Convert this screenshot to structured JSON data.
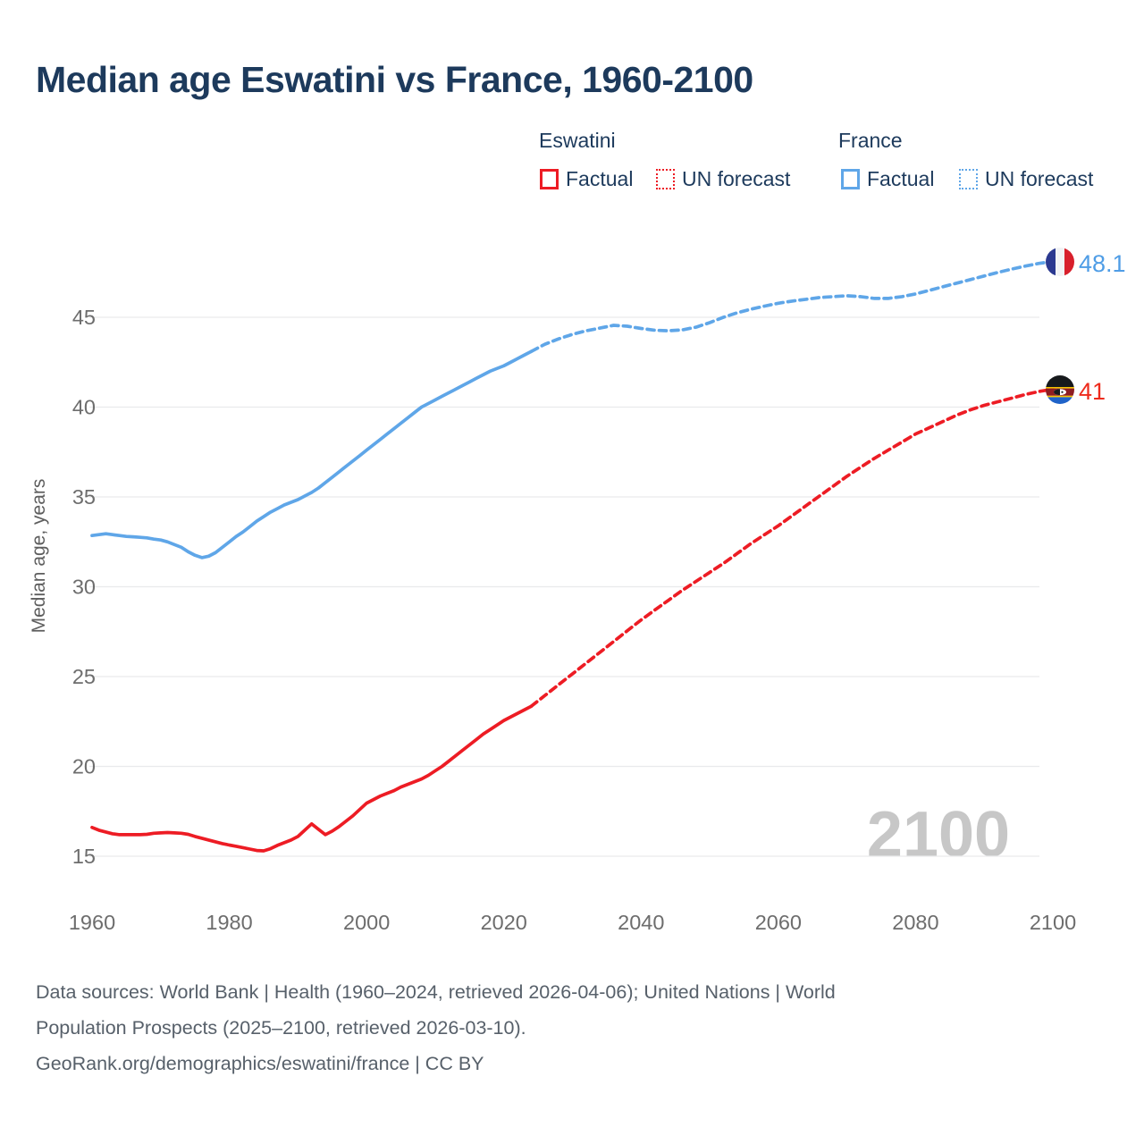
{
  "title": "Median age Eswatini vs France, 1960-2100",
  "legend": {
    "groups": [
      {
        "name": "Eswatini",
        "color": "#ed1c24",
        "items": [
          {
            "label": "Factual",
            "style": "solid"
          },
          {
            "label": "UN forecast",
            "style": "dotted"
          }
        ]
      },
      {
        "name": "France",
        "color": "#5fa6e8",
        "items": [
          {
            "label": "Factual",
            "style": "solid"
          },
          {
            "label": "UN forecast",
            "style": "dotted"
          }
        ]
      }
    ]
  },
  "footer": {
    "line1": "Data sources: World Bank | Health (1960–2024, retrieved 2026-04-06); United Nations | World",
    "line2": "Population Prospects (2025–2100, retrieved 2026-03-10).",
    "line3": "GeoRank.org/demographics/eswatini/france | CC BY"
  },
  "chart_data": {
    "type": "line",
    "title": "Median age Eswatini vs France, 1960-2100",
    "xlabel": "",
    "ylabel": "Median age, years",
    "x_ticks": [
      1960,
      1980,
      2000,
      2020,
      2040,
      2060,
      2080,
      2100
    ],
    "y_ticks": [
      15,
      20,
      25,
      30,
      35,
      40,
      45
    ],
    "x_range": [
      1960,
      2100
    ],
    "y_range": [
      15,
      45
    ],
    "grid": "horizontal-only",
    "legend_position": "top-right",
    "watermark": "2100",
    "colors": {
      "eswatini": "#ed1c24",
      "france": "#5fa6e8",
      "grid": "#e9eaec",
      "tick": "#6d6d6d"
    },
    "end_labels": [
      {
        "series": "France",
        "value": "48.1",
        "color": "#4f9de6",
        "flag": "france-flag-icon",
        "year": 2100
      },
      {
        "series": "Eswatini",
        "value": "41",
        "color": "#ee2b1c",
        "flag": "eswatini-flag-icon",
        "year": 2100
      }
    ],
    "series": [
      {
        "name": "Eswatini Factual",
        "color": "#ed1c24",
        "dashed": false,
        "points": [
          [
            1960,
            16.6
          ],
          [
            1961,
            16.45
          ],
          [
            1962,
            16.35
          ],
          [
            1963,
            16.25
          ],
          [
            1964,
            16.2
          ],
          [
            1965,
            16.2
          ],
          [
            1966,
            16.2
          ],
          [
            1967,
            16.2
          ],
          [
            1968,
            16.22
          ],
          [
            1969,
            16.28
          ],
          [
            1970,
            16.3
          ],
          [
            1971,
            16.32
          ],
          [
            1972,
            16.3
          ],
          [
            1973,
            16.28
          ],
          [
            1974,
            16.22
          ],
          [
            1975,
            16.1
          ],
          [
            1976,
            16.0
          ],
          [
            1977,
            15.9
          ],
          [
            1978,
            15.8
          ],
          [
            1979,
            15.7
          ],
          [
            1980,
            15.62
          ],
          [
            1981,
            15.55
          ],
          [
            1982,
            15.48
          ],
          [
            1983,
            15.4
          ],
          [
            1984,
            15.32
          ],
          [
            1985,
            15.3
          ],
          [
            1986,
            15.42
          ],
          [
            1987,
            15.6
          ],
          [
            1988,
            15.75
          ],
          [
            1989,
            15.9
          ],
          [
            1990,
            16.1
          ],
          [
            1991,
            16.45
          ],
          [
            1992,
            16.8
          ],
          [
            1993,
            16.5
          ],
          [
            1994,
            16.2
          ],
          [
            1995,
            16.4
          ],
          [
            1996,
            16.65
          ],
          [
            1997,
            16.95
          ],
          [
            1998,
            17.25
          ],
          [
            1999,
            17.6
          ],
          [
            2000,
            17.95
          ],
          [
            2001,
            18.15
          ],
          [
            2002,
            18.35
          ],
          [
            2003,
            18.5
          ],
          [
            2004,
            18.65
          ],
          [
            2005,
            18.85
          ],
          [
            2006,
            19.0
          ],
          [
            2007,
            19.15
          ],
          [
            2008,
            19.3
          ],
          [
            2009,
            19.5
          ],
          [
            2010,
            19.75
          ],
          [
            2011,
            20.0
          ],
          [
            2012,
            20.3
          ],
          [
            2013,
            20.6
          ],
          [
            2014,
            20.9
          ],
          [
            2015,
            21.2
          ],
          [
            2016,
            21.5
          ],
          [
            2017,
            21.8
          ],
          [
            2018,
            22.05
          ],
          [
            2019,
            22.3
          ],
          [
            2020,
            22.55
          ],
          [
            2021,
            22.75
          ],
          [
            2022,
            22.95
          ],
          [
            2023,
            23.15
          ],
          [
            2024,
            23.35
          ]
        ]
      },
      {
        "name": "Eswatini UN forecast",
        "color": "#ed1c24",
        "dashed": true,
        "points": [
          [
            2024,
            23.35
          ],
          [
            2026,
            23.95
          ],
          [
            2028,
            24.55
          ],
          [
            2030,
            25.15
          ],
          [
            2032,
            25.75
          ],
          [
            2034,
            26.35
          ],
          [
            2036,
            26.95
          ],
          [
            2038,
            27.55
          ],
          [
            2040,
            28.15
          ],
          [
            2042,
            28.7
          ],
          [
            2044,
            29.25
          ],
          [
            2046,
            29.8
          ],
          [
            2048,
            30.3
          ],
          [
            2050,
            30.8
          ],
          [
            2052,
            31.3
          ],
          [
            2054,
            31.85
          ],
          [
            2056,
            32.4
          ],
          [
            2058,
            32.9
          ],
          [
            2060,
            33.4
          ],
          [
            2062,
            33.95
          ],
          [
            2064,
            34.5
          ],
          [
            2066,
            35.05
          ],
          [
            2068,
            35.6
          ],
          [
            2070,
            36.15
          ],
          [
            2072,
            36.65
          ],
          [
            2074,
            37.15
          ],
          [
            2076,
            37.6
          ],
          [
            2078,
            38.05
          ],
          [
            2080,
            38.5
          ],
          [
            2082,
            38.85
          ],
          [
            2084,
            39.2
          ],
          [
            2086,
            39.55
          ],
          [
            2088,
            39.85
          ],
          [
            2090,
            40.1
          ],
          [
            2092,
            40.3
          ],
          [
            2094,
            40.5
          ],
          [
            2096,
            40.7
          ],
          [
            2098,
            40.87
          ],
          [
            2100,
            41.0
          ]
        ]
      },
      {
        "name": "France Factual",
        "color": "#5fa6e8",
        "dashed": false,
        "points": [
          [
            1960,
            32.85
          ],
          [
            1961,
            32.9
          ],
          [
            1962,
            32.95
          ],
          [
            1963,
            32.9
          ],
          [
            1964,
            32.85
          ],
          [
            1965,
            32.8
          ],
          [
            1966,
            32.78
          ],
          [
            1967,
            32.75
          ],
          [
            1968,
            32.72
          ],
          [
            1969,
            32.65
          ],
          [
            1970,
            32.6
          ],
          [
            1971,
            32.5
          ],
          [
            1972,
            32.35
          ],
          [
            1973,
            32.2
          ],
          [
            1974,
            31.95
          ],
          [
            1975,
            31.75
          ],
          [
            1976,
            31.62
          ],
          [
            1977,
            31.7
          ],
          [
            1978,
            31.9
          ],
          [
            1979,
            32.2
          ],
          [
            1980,
            32.5
          ],
          [
            1981,
            32.8
          ],
          [
            1982,
            33.05
          ],
          [
            1983,
            33.35
          ],
          [
            1984,
            33.65
          ],
          [
            1985,
            33.9
          ],
          [
            1986,
            34.15
          ],
          [
            1987,
            34.35
          ],
          [
            1988,
            34.55
          ],
          [
            1989,
            34.7
          ],
          [
            1990,
            34.85
          ],
          [
            1991,
            35.05
          ],
          [
            1992,
            35.25
          ],
          [
            1993,
            35.5
          ],
          [
            1994,
            35.8
          ],
          [
            1995,
            36.1
          ],
          [
            1996,
            36.4
          ],
          [
            1997,
            36.7
          ],
          [
            1998,
            37.0
          ],
          [
            1999,
            37.3
          ],
          [
            2000,
            37.6
          ],
          [
            2001,
            37.9
          ],
          [
            2002,
            38.2
          ],
          [
            2003,
            38.5
          ],
          [
            2004,
            38.8
          ],
          [
            2005,
            39.1
          ],
          [
            2006,
            39.4
          ],
          [
            2007,
            39.7
          ],
          [
            2008,
            40.0
          ],
          [
            2009,
            40.2
          ],
          [
            2010,
            40.4
          ],
          [
            2011,
            40.6
          ],
          [
            2012,
            40.8
          ],
          [
            2013,
            41.0
          ],
          [
            2014,
            41.2
          ],
          [
            2015,
            41.4
          ],
          [
            2016,
            41.6
          ],
          [
            2017,
            41.8
          ],
          [
            2018,
            42.0
          ],
          [
            2019,
            42.15
          ],
          [
            2020,
            42.3
          ],
          [
            2021,
            42.5
          ],
          [
            2022,
            42.7
          ],
          [
            2023,
            42.9
          ],
          [
            2024,
            43.1
          ]
        ]
      },
      {
        "name": "France UN forecast",
        "color": "#5fa6e8",
        "dashed": true,
        "points": [
          [
            2024,
            43.1
          ],
          [
            2026,
            43.5
          ],
          [
            2028,
            43.8
          ],
          [
            2030,
            44.05
          ],
          [
            2032,
            44.25
          ],
          [
            2034,
            44.4
          ],
          [
            2036,
            44.55
          ],
          [
            2038,
            44.5
          ],
          [
            2040,
            44.38
          ],
          [
            2042,
            44.28
          ],
          [
            2044,
            44.25
          ],
          [
            2046,
            44.3
          ],
          [
            2048,
            44.45
          ],
          [
            2050,
            44.7
          ],
          [
            2052,
            45.0
          ],
          [
            2054,
            45.25
          ],
          [
            2056,
            45.45
          ],
          [
            2058,
            45.62
          ],
          [
            2060,
            45.78
          ],
          [
            2062,
            45.9
          ],
          [
            2064,
            46.0
          ],
          [
            2066,
            46.1
          ],
          [
            2068,
            46.15
          ],
          [
            2070,
            46.2
          ],
          [
            2072,
            46.15
          ],
          [
            2074,
            46.05
          ],
          [
            2076,
            46.05
          ],
          [
            2078,
            46.15
          ],
          [
            2080,
            46.3
          ],
          [
            2082,
            46.5
          ],
          [
            2084,
            46.7
          ],
          [
            2086,
            46.9
          ],
          [
            2088,
            47.1
          ],
          [
            2090,
            47.3
          ],
          [
            2092,
            47.5
          ],
          [
            2094,
            47.68
          ],
          [
            2096,
            47.85
          ],
          [
            2098,
            48.0
          ],
          [
            2100,
            48.1
          ]
        ]
      }
    ]
  }
}
